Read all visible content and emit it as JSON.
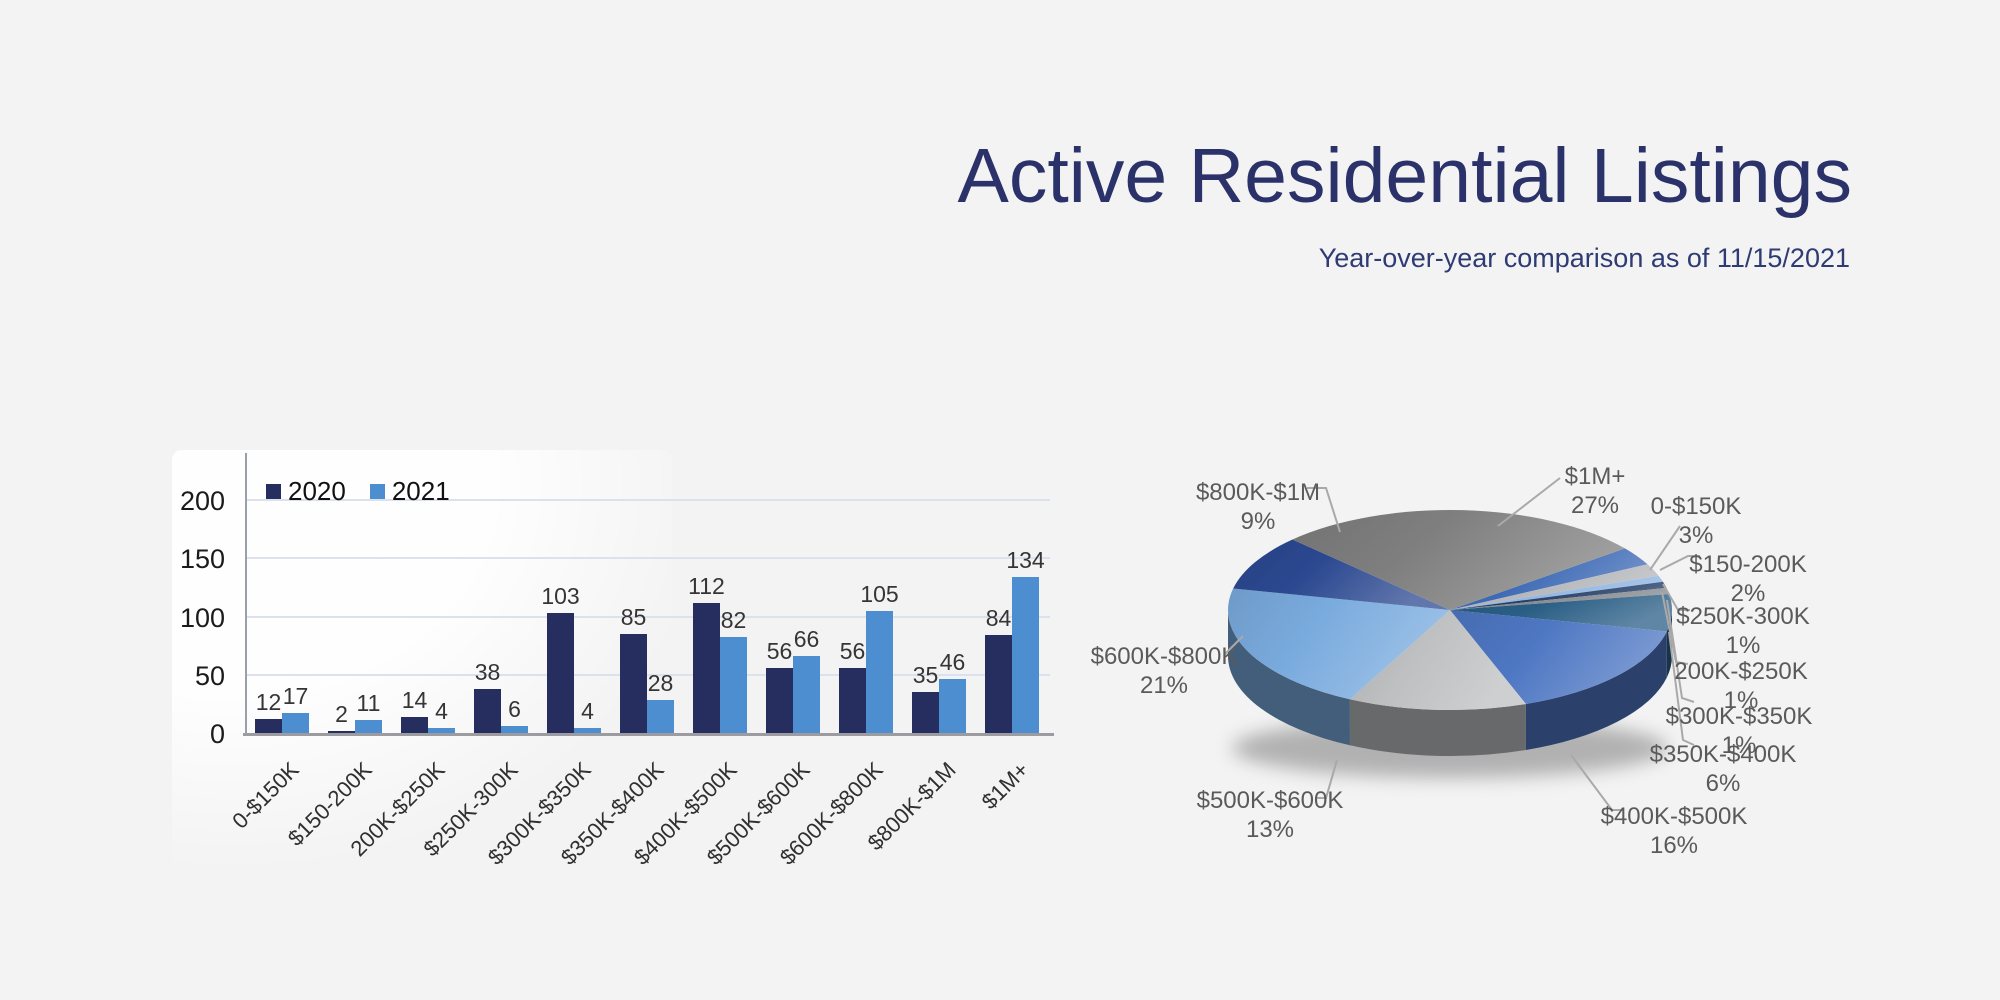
{
  "page": {
    "background": "#f3f3f4"
  },
  "header": {
    "title": "Active Residential Listings",
    "subtitle": "Year-over-year comparison as of 11/15/2021"
  },
  "colors": {
    "title_navy": "#2b3269",
    "grid": "#dce1ee",
    "axis": "#9aa0a8",
    "leader_line": "#a9a9a9",
    "pie_label_text": "#5a5a5a"
  },
  "chart_data": [
    {
      "type": "bar",
      "title": "",
      "categories": [
        "0-$150K",
        "$150-200K",
        "200K-$250K",
        "$250K-300K",
        "$300K-$350K",
        "$350K-$400K",
        "$400K-$500K",
        "$500K-$600K",
        "$600K-$800K",
        "$800K-$1M",
        "$1M+"
      ],
      "series": [
        {
          "name": "2020",
          "color": "#262e5f",
          "values": [
            12,
            2,
            14,
            38,
            103,
            85,
            112,
            56,
            56,
            35,
            84
          ]
        },
        {
          "name": "2021",
          "color": "#4c8ecf",
          "values": [
            17,
            11,
            4,
            6,
            4,
            28,
            82,
            66,
            105,
            46,
            134
          ]
        }
      ],
      "ylim": [
        0,
        200
      ],
      "yticks": [
        0,
        50,
        100,
        150,
        200
      ],
      "grid": true,
      "legend_position": "top-left"
    },
    {
      "type": "pie",
      "style": "3d",
      "start_angle_deg": 52,
      "slices": [
        {
          "label": "0-$150K",
          "pct": 3,
          "color": "#3e6ab5"
        },
        {
          "label": "$150-200K",
          "pct": 2,
          "color": "#b3b6ba"
        },
        {
          "label": "200K-$250K",
          "pct": 1,
          "color": "#8fb4e1"
        },
        {
          "label": "$250K-300K",
          "pct": 1,
          "color": "#1f3a64"
        },
        {
          "label": "$300K-$350K",
          "pct": 1,
          "color": "#84888d"
        },
        {
          "label": "$350K-$400K",
          "pct": 6,
          "color": "#2a5e85"
        },
        {
          "label": "$400K-$500K",
          "pct": 16,
          "color": "#4e77c3"
        },
        {
          "label": "$500K-$600K",
          "pct": 13,
          "color": "#bdbfc1"
        },
        {
          "label": "$600K-$800K",
          "pct": 21,
          "color": "#7aabde"
        },
        {
          "label": "$800K-$1M",
          "pct": 9,
          "color": "#2b4890"
        },
        {
          "label": "$1M+",
          "pct": 27,
          "color": "#7f7f7f"
        }
      ]
    }
  ]
}
